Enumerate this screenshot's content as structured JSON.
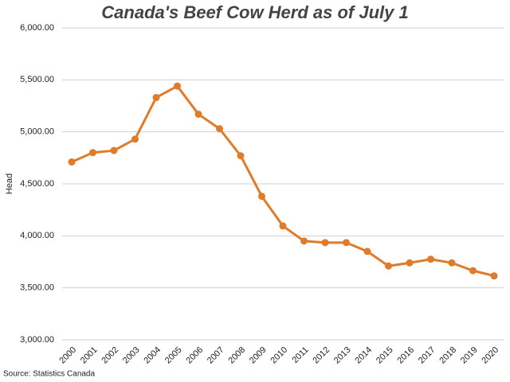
{
  "chart_data": {
    "type": "line",
    "title": "Canada's Beef Cow Herd as of July 1",
    "y_label": "Head",
    "source": "Source: Statistics Canada",
    "categories": [
      "2000",
      "2001",
      "2002",
      "2003",
      "2004",
      "2005",
      "2006",
      "2007",
      "2008",
      "2009",
      "2010",
      "2011",
      "2012",
      "2013",
      "2014",
      "2015",
      "2016",
      "2017",
      "2018",
      "2019",
      "2020"
    ],
    "values": [
      4710,
      4800,
      4820,
      4930,
      5330,
      5440,
      5170,
      5030,
      4770,
      4380,
      4095,
      3950,
      3935,
      3935,
      3850,
      3710,
      3740,
      3775,
      3740,
      3665,
      3615
    ],
    "color": "#e07b2a",
    "ylim": [
      3000,
      6000
    ],
    "yticks": [
      {
        "value": 3000,
        "label": "3,000.00"
      },
      {
        "value": 3500,
        "label": "3,500.00"
      },
      {
        "value": 4000,
        "label": "4,000.00"
      },
      {
        "value": 4500,
        "label": "4,500.00"
      },
      {
        "value": 5000,
        "label": "5,000.00"
      },
      {
        "value": 5500,
        "label": "5,500.00"
      },
      {
        "value": 6000,
        "label": "6,000.00"
      }
    ],
    "grid": true
  }
}
